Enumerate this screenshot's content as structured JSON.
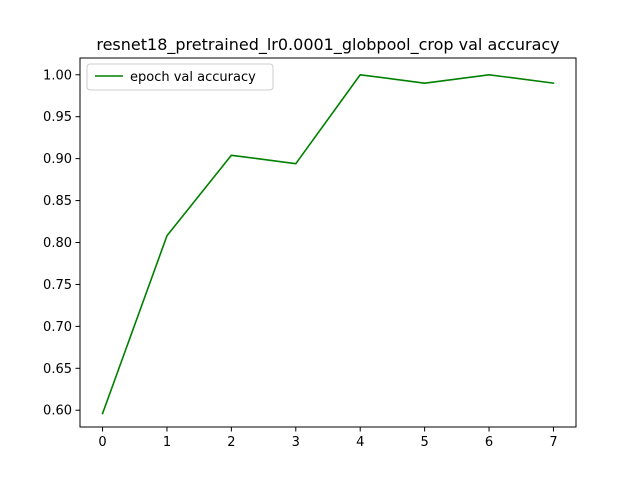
{
  "chart_data": {
    "type": "line",
    "title": "resnet18_pretrained_lr0.0001_globpool_crop val accuracy",
    "xlabel": "",
    "ylabel": "",
    "x": [
      0,
      1,
      2,
      3,
      4,
      5,
      6,
      7
    ],
    "series": [
      {
        "name": "epoch val accuracy",
        "color": "#008000",
        "values": [
          0.596,
          0.808,
          0.904,
          0.894,
          1.0,
          0.99,
          1.0,
          0.99
        ]
      }
    ],
    "xlim": [
      -0.35,
      7.35
    ],
    "ylim": [
      0.58,
      1.02
    ],
    "xticks": [
      0,
      1,
      2,
      3,
      4,
      5,
      6,
      7
    ],
    "yticks": [
      0.6,
      0.65,
      0.7,
      0.75,
      0.8,
      0.85,
      0.9,
      0.95,
      1.0
    ],
    "ytick_labels": [
      "0.60",
      "0.65",
      "0.70",
      "0.75",
      "0.80",
      "0.85",
      "0.90",
      "0.95",
      "1.00"
    ],
    "grid": false,
    "legend_position": "top-left"
  }
}
